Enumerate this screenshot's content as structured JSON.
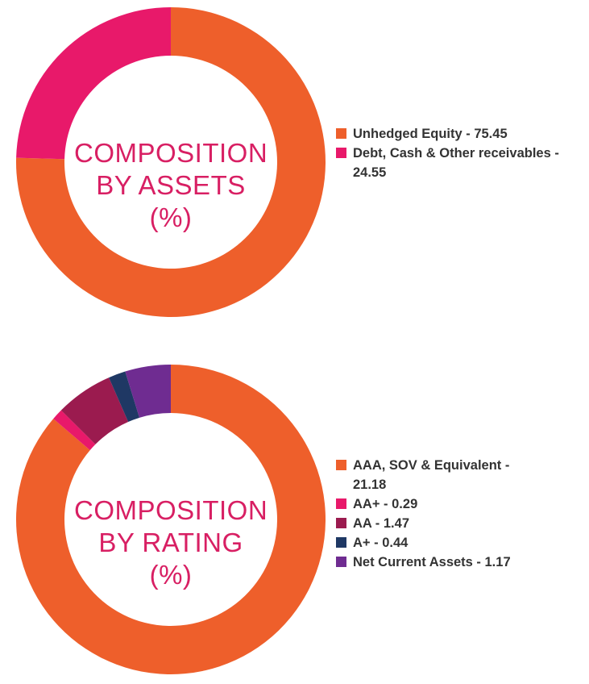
{
  "chart_data": [
    {
      "type": "pie",
      "title_lines": [
        "COMPOSITION",
        "BY ASSETS",
        "(%)"
      ],
      "slices": [
        {
          "label": "Unhedged Equity - 75.45",
          "value": 75.45,
          "color": "#ee5f2b"
        },
        {
          "label": "Debt, Cash & Other receivables - 24.55",
          "value": 24.55,
          "color": "#e8196a"
        }
      ],
      "legend_position": "right"
    },
    {
      "type": "pie",
      "title_lines": [
        "COMPOSITION",
        "BY RATING",
        "(%)"
      ],
      "slices": [
        {
          "label": "AAA, SOV & Equivalent - 21.18",
          "value": 21.18,
          "color": "#ee5f2b"
        },
        {
          "label": "AA+ - 0.29",
          "value": 0.29,
          "color": "#e8196a"
        },
        {
          "label": "AA - 1.47",
          "value": 1.47,
          "color": "#9b1b4f"
        },
        {
          "label": "A+ - 0.44",
          "value": 0.44,
          "color": "#1f3864"
        },
        {
          "label": "Net Current Assets - 1.17",
          "value": 1.17,
          "color": "#6f2c91"
        }
      ],
      "legend_position": "right"
    }
  ]
}
